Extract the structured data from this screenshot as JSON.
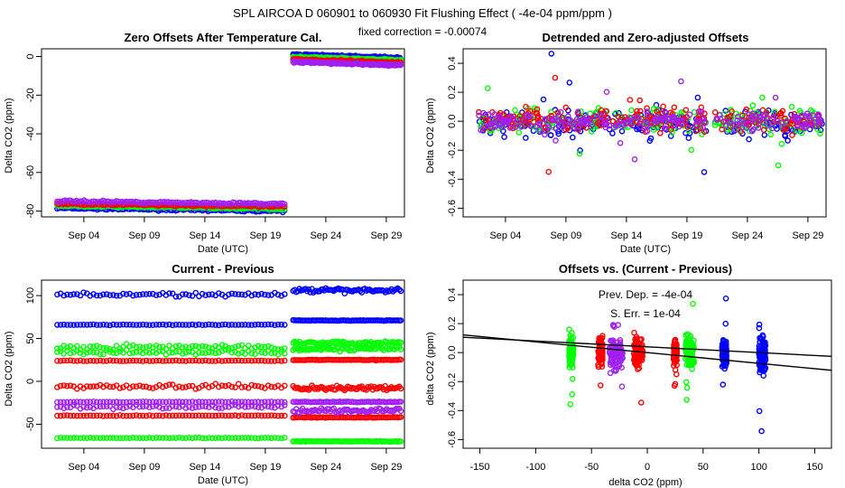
{
  "header": {
    "title": "SPL   AIRCOA D   060901 to 060930   Fit Flushing Effect ( -4e-04 ppm/ppm )",
    "subtitle": "fixed correction = -0.00074"
  },
  "colors": {
    "blue": "#0000ff",
    "green": "#00ff00",
    "red": "#ff0000",
    "purple": "#a020f0",
    "black": "#000000"
  },
  "chart_data": [
    {
      "id": "zero-offsets",
      "type": "scatter",
      "title": "Zero Offsets After Temperature Cal.",
      "xlabel": "Date (UTC)",
      "ylabel": "Delta CO2 (ppm)",
      "xlim": [
        0.5,
        30.5
      ],
      "ylim": [
        -83,
        4
      ],
      "x_ticks": [
        4,
        9,
        14,
        19,
        24,
        29
      ],
      "x_tick_labels": [
        "Sep 04",
        "Sep 09",
        "Sep 14",
        "Sep 19",
        "Sep 24",
        "Sep 29"
      ],
      "y_ticks": [
        0,
        -20,
        -40,
        -60,
        -80
      ],
      "y_tick_labels": [
        "0",
        "-20",
        "-40",
        "-60",
        "-80"
      ],
      "series": [
        {
          "name": "blue",
          "color": "#0000ff",
          "segments": [
            {
              "x": [
                1.8,
                20.6
              ],
              "y": [
                -78.5,
                -80.0
              ]
            },
            {
              "x": [
                21.3,
                30.2
              ],
              "y": [
                1.0,
                -0.8
              ]
            }
          ]
        },
        {
          "name": "green",
          "color": "#00ff00",
          "segments": [
            {
              "x": [
                1.8,
                20.6
              ],
              "y": [
                -77.3,
                -78.8
              ]
            },
            {
              "x": [
                21.3,
                30.2
              ],
              "y": [
                -0.3,
                -2.0
              ]
            }
          ]
        },
        {
          "name": "red",
          "color": "#ff0000",
          "segments": [
            {
              "x": [
                1.8,
                20.6
              ],
              "y": [
                -76.2,
                -77.7
              ]
            },
            {
              "x": [
                21.3,
                30.2
              ],
              "y": [
                -1.5,
                -3.2
              ]
            }
          ]
        },
        {
          "name": "purple",
          "color": "#a020f0",
          "segments": [
            {
              "x": [
                1.8,
                20.6
              ],
              "y": [
                -74.8,
                -76.3
              ]
            },
            {
              "x": [
                21.3,
                30.2
              ],
              "y": [
                -2.8,
                -4.5
              ]
            }
          ]
        }
      ]
    },
    {
      "id": "detrended",
      "type": "scatter",
      "title": "Detrended and Zero-adjusted Offsets",
      "xlabel": "Date (UTC)",
      "ylabel": "Delta CO2 (ppm)",
      "xlim": [
        0.5,
        30.5
      ],
      "ylim": [
        -0.66,
        0.5
      ],
      "x_ticks": [
        4,
        9,
        14,
        19,
        24,
        29
      ],
      "x_tick_labels": [
        "Sep 04",
        "Sep 09",
        "Sep 14",
        "Sep 19",
        "Sep 24",
        "Sep 29"
      ],
      "y_ticks": [
        0.4,
        0.2,
        0.0,
        -0.2,
        -0.4,
        -0.6
      ],
      "y_tick_labels": [
        "0.4",
        "0.2",
        "0.0",
        "-0.2",
        "-0.4",
        "-0.6"
      ],
      "series": [
        {
          "name": "blue",
          "color": "#0000ff",
          "x_range": [
            1.8,
            30.2
          ],
          "center": -0.02,
          "spread": 0.12
        },
        {
          "name": "green",
          "color": "#00ff00",
          "x_range": [
            1.8,
            30.2
          ],
          "center": 0.0,
          "spread": 0.1
        },
        {
          "name": "red",
          "color": "#ff0000",
          "x_range": [
            1.8,
            30.2
          ],
          "center": 0.01,
          "spread": 0.1
        },
        {
          "name": "purple",
          "color": "#a020f0",
          "x_range": [
            1.8,
            30.2
          ],
          "center": 0.0,
          "spread": 0.08
        }
      ]
    },
    {
      "id": "current-previous",
      "type": "scatter",
      "title": "Current - Previous",
      "xlabel": "Date (UTC)",
      "ylabel": "Delta CO2 (ppm)",
      "xlim": [
        0.5,
        30.5
      ],
      "ylim": [
        -78,
        118
      ],
      "x_ticks": [
        4,
        9,
        14,
        19,
        24,
        29
      ],
      "x_tick_labels": [
        "Sep 04",
        "Sep 09",
        "Sep 14",
        "Sep 19",
        "Sep 24",
        "Sep 29"
      ],
      "y_ticks": [
        100,
        50,
        0,
        -50
      ],
      "y_tick_labels": [
        "100",
        "50",
        "0",
        "-50"
      ],
      "series": [
        {
          "name": "blue",
          "color": "#0000ff",
          "levels": [
            [
              101,
              106
            ],
            [
              66,
              71
            ]
          ]
        },
        {
          "name": "green",
          "color": "#00ff00",
          "levels": [
            [
              40,
              45
            ],
            [
              34,
              38
            ],
            [
              -66,
              -70
            ]
          ]
        },
        {
          "name": "red",
          "color": "#ff0000",
          "levels": [
            [
              24,
              25
            ],
            [
              -6,
              -8
            ],
            [
              -40,
              -42
            ]
          ]
        },
        {
          "name": "purple",
          "color": "#a020f0",
          "levels": [
            [
              -24,
              -24
            ],
            [
              -30,
              -34
            ]
          ]
        }
      ]
    },
    {
      "id": "offsets-vs-diff",
      "type": "scatter",
      "title": "Offsets vs. (Current - Previous)",
      "xlabel": "delta CO2 (ppm)",
      "ylabel": "delta CO2 (ppm)",
      "xlim": [
        -165,
        165
      ],
      "ylim": [
        -0.66,
        0.5
      ],
      "x_ticks": [
        -150,
        -100,
        -50,
        0,
        50,
        100,
        150
      ],
      "x_tick_labels": [
        "-150",
        "-100",
        "-50",
        "0",
        "50",
        "100",
        "150"
      ],
      "y_ticks": [
        0.4,
        0.2,
        0.0,
        -0.2,
        -0.4,
        -0.6
      ],
      "y_tick_labels": [
        "0.4",
        "0.2",
        "0.0",
        "-0.2",
        "-0.4",
        "-0.6"
      ],
      "clusters": [
        {
          "color": "#00ff00",
          "x": -68,
          "width": 4,
          "spread": 0.1
        },
        {
          "color": "#ff0000",
          "x": -42,
          "width": 4,
          "spread": 0.1
        },
        {
          "color": "#a020f0",
          "x": -28,
          "width": 12,
          "spread": 0.12
        },
        {
          "color": "#ff0000",
          "x": -8,
          "width": 8,
          "spread": 0.12
        },
        {
          "color": "#ff0000",
          "x": 25,
          "width": 3,
          "spread": 0.08
        },
        {
          "color": "#00ff00",
          "x": 38,
          "width": 8,
          "spread": 0.12
        },
        {
          "color": "#0000ff",
          "x": 69,
          "width": 4,
          "spread": 0.1
        },
        {
          "color": "#0000ff",
          "x": 103,
          "width": 6,
          "spread": 0.15
        }
      ],
      "fit_lines": [
        {
          "slope": -0.0004,
          "intercept": 0.04
        },
        {
          "slope": -0.00074,
          "intercept": 0.0
        }
      ],
      "annotations": {
        "prev_dep": "Prev. Dep. =  -4e-04",
        "s_err": "S. Err. =  1e-04"
      }
    }
  ]
}
